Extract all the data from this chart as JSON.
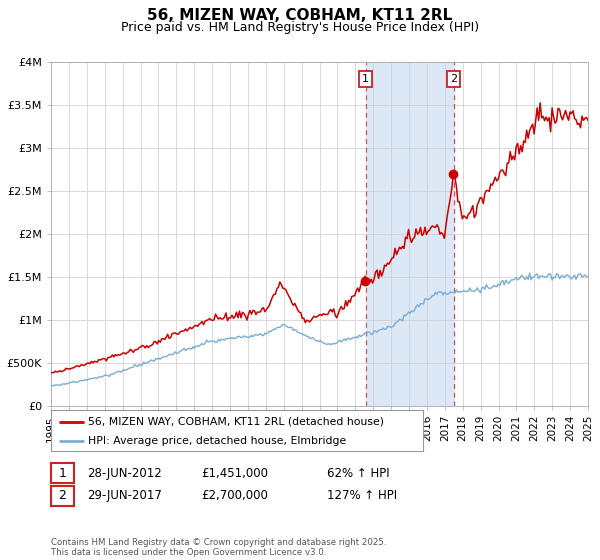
{
  "title": "56, MIZEN WAY, COBHAM, KT11 2RL",
  "subtitle": "Price paid vs. HM Land Registry's House Price Index (HPI)",
  "legend_line1": "56, MIZEN WAY, COBHAM, KT11 2RL (detached house)",
  "legend_line2": "HPI: Average price, detached house, Elmbridge",
  "annotation1_date": "28-JUN-2012",
  "annotation1_price": "£1,451,000",
  "annotation1_hpi": "62% ↑ HPI",
  "annotation2_date": "29-JUN-2017",
  "annotation2_price": "£2,700,000",
  "annotation2_hpi": "127% ↑ HPI",
  "footer": "Contains HM Land Registry data © Crown copyright and database right 2025.\nThis data is licensed under the Open Government Licence v3.0.",
  "red_line_color": "#cc0000",
  "blue_line_color": "#7aadd4",
  "plot_bg_color": "#ffffff",
  "shade_color": "#dce8f5",
  "dashed_color": "#e05050",
  "year_start": 1995,
  "year_end": 2025,
  "ylim_max": 4000000,
  "sale1_year": 2012.58,
  "sale2_year": 2017.5
}
